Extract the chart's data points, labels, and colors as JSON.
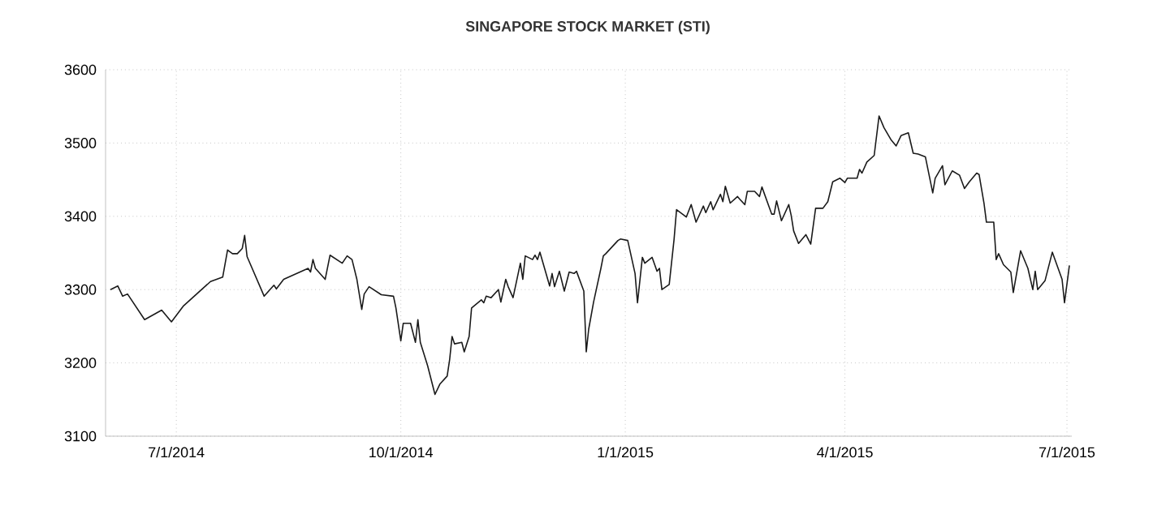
{
  "chart_data": {
    "type": "line",
    "title": "SINGAPORE STOCK MARKET (STI)",
    "x": [
      "2014-06-04",
      "2014-06-07",
      "2014-06-09",
      "2014-06-11",
      "2014-06-18",
      "2014-06-25",
      "2014-06-29",
      "2014-07-04",
      "2014-07-15",
      "2014-07-20",
      "2014-07-22",
      "2014-07-24",
      "2014-07-26",
      "2014-07-28",
      "2014-07-29",
      "2014-07-30",
      "2014-08-06",
      "2014-08-10",
      "2014-08-11",
      "2014-08-14",
      "2014-08-24",
      "2014-08-25",
      "2014-08-26",
      "2014-08-27",
      "2014-08-31",
      "2014-09-02",
      "2014-09-07",
      "2014-09-08",
      "2014-09-09",
      "2014-09-11",
      "2014-09-13",
      "2014-09-15",
      "2014-09-16",
      "2014-09-18",
      "2014-09-23",
      "2014-09-28",
      "2014-09-29",
      "2014-10-01",
      "2014-10-02",
      "2014-10-05",
      "2014-10-07",
      "2014-10-08",
      "2014-10-09",
      "2014-10-12",
      "2014-10-15",
      "2014-10-17",
      "2014-10-20",
      "2014-10-21",
      "2014-10-22",
      "2014-10-23",
      "2014-10-26",
      "2014-10-27",
      "2014-10-29",
      "2014-10-30",
      "2014-11-03",
      "2014-11-04",
      "2014-11-05",
      "2014-11-07",
      "2014-11-10",
      "2014-11-11",
      "2014-11-13",
      "2014-11-14",
      "2014-11-16",
      "2014-11-19",
      "2014-11-20",
      "2014-11-21",
      "2014-11-24",
      "2014-11-25",
      "2014-11-26",
      "2014-11-27",
      "2014-12-01",
      "2014-12-02",
      "2014-12-03",
      "2014-12-05",
      "2014-12-07",
      "2014-12-09",
      "2014-12-11",
      "2014-12-12",
      "2014-12-15",
      "2014-12-16",
      "2014-12-17",
      "2014-12-19",
      "2014-12-22",
      "2014-12-23",
      "2014-12-24",
      "2014-12-29",
      "2014-12-30",
      "2015-01-02",
      "2015-01-05",
      "2015-01-06",
      "2015-01-08",
      "2015-01-09",
      "2015-01-12",
      "2015-01-14",
      "2015-01-15",
      "2015-01-16",
      "2015-01-19",
      "2015-01-21",
      "2015-01-22",
      "2015-01-26",
      "2015-01-28",
      "2015-01-30",
      "2015-02-02",
      "2015-02-03",
      "2015-02-05",
      "2015-02-06",
      "2015-02-09",
      "2015-02-10",
      "2015-02-11",
      "2015-02-13",
      "2015-02-16",
      "2015-02-17",
      "2015-02-19",
      "2015-02-20",
      "2015-02-23",
      "2015-02-25",
      "2015-02-26",
      "2015-03-02",
      "2015-03-03",
      "2015-03-04",
      "2015-03-06",
      "2015-03-09",
      "2015-03-10",
      "2015-03-11",
      "2015-03-13",
      "2015-03-16",
      "2015-03-18",
      "2015-03-20",
      "2015-03-23",
      "2015-03-25",
      "2015-03-27",
      "2015-03-30",
      "2015-04-01",
      "2015-04-02",
      "2015-04-06",
      "2015-04-07",
      "2015-04-08",
      "2015-04-10",
      "2015-04-13",
      "2015-04-15",
      "2015-04-17",
      "2015-04-20",
      "2015-04-22",
      "2015-04-24",
      "2015-04-27",
      "2015-04-29",
      "2015-05-01",
      "2015-05-04",
      "2015-05-07",
      "2015-05-08",
      "2015-05-11",
      "2015-05-12",
      "2015-05-15",
      "2015-05-18",
      "2015-05-20",
      "2015-05-22",
      "2015-05-25",
      "2015-05-26",
      "2015-05-28",
      "2015-05-29",
      "2015-06-01",
      "2015-06-02",
      "2015-06-03",
      "2015-06-05",
      "2015-06-08",
      "2015-06-09",
      "2015-06-12",
      "2015-06-15",
      "2015-06-17",
      "2015-06-18",
      "2015-06-19",
      "2015-06-22",
      "2015-06-25",
      "2015-06-29",
      "2015-06-30",
      "2015-07-02"
    ],
    "series": [
      {
        "color": "#1a1a1a",
        "values": [
          3300,
          3305,
          3291,
          3294,
          3259,
          3272,
          3256,
          3278,
          3311,
          3317,
          3354,
          3349,
          3349,
          3356,
          3374,
          3345,
          3291,
          3306,
          3301,
          3314,
          3329,
          3324,
          3341,
          3329,
          3314,
          3347,
          3336,
          3341,
          3346,
          3341,
          3314,
          3273,
          3294,
          3304,
          3293,
          3291,
          3275,
          3230,
          3254,
          3254,
          3228,
          3259,
          3228,
          3196,
          3157,
          3171,
          3182,
          3204,
          3236,
          3226,
          3228,
          3215,
          3236,
          3275,
          3286,
          3282,
          3291,
          3289,
          3300,
          3283,
          3314,
          3304,
          3289,
          3336,
          3314,
          3346,
          3341,
          3347,
          3341,
          3351,
          3305,
          3322,
          3304,
          3325,
          3298,
          3324,
          3322,
          3325,
          3298,
          3215,
          3246,
          3283,
          3329,
          3346,
          3349,
          3367,
          3369,
          3367,
          3322,
          3282,
          3344,
          3336,
          3344,
          3325,
          3329,
          3300,
          3307,
          3369,
          3409,
          3399,
          3416,
          3392,
          3414,
          3405,
          3420,
          3409,
          3430,
          3420,
          3441,
          3418,
          3427,
          3423,
          3416,
          3434,
          3434,
          3427,
          3440,
          3403,
          3403,
          3421,
          3394,
          3416,
          3401,
          3380,
          3363,
          3375,
          3362,
          3411,
          3411,
          3420,
          3447,
          3452,
          3446,
          3452,
          3452,
          3464,
          3459,
          3474,
          3483,
          3537,
          3521,
          3504,
          3496,
          3510,
          3514,
          3486,
          3485,
          3481,
          3432,
          3452,
          3469,
          3443,
          3462,
          3456,
          3438,
          3447,
          3459,
          3457,
          3418,
          3392,
          3392,
          3341,
          3349,
          3334,
          3324,
          3296,
          3353,
          3329,
          3300,
          3325,
          3300,
          3312,
          3351,
          3314,
          3282,
          3333
        ]
      }
    ],
    "xlim": [
      "2014-06-02",
      "2015-07-03"
    ],
    "ylim": [
      3100,
      3600
    ],
    "xticks": [
      {
        "value": "2014-07-01",
        "label": "7/1/2014"
      },
      {
        "value": "2014-10-01",
        "label": "10/1/2014"
      },
      {
        "value": "2015-01-01",
        "label": "1/1/2015"
      },
      {
        "value": "2015-04-01",
        "label": "4/1/2015"
      },
      {
        "value": "2015-07-01",
        "label": "7/1/2015"
      }
    ],
    "yticks": [
      3100,
      3200,
      3300,
      3400,
      3500,
      3600
    ],
    "grid": true
  }
}
